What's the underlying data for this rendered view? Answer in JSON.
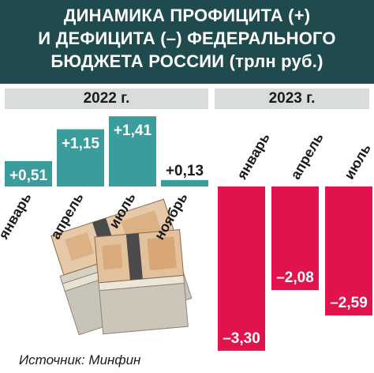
{
  "title": {
    "line1": "ДИНАМИКА ПРОФИЦИТА (+)",
    "line2": "И ДЕФИЦИТА (–) ФЕДЕРАЛЬНОГО",
    "line3": "БЮДЖЕТА РОССИИ (трлн руб.)"
  },
  "source": "Источник: Минфин",
  "colors": {
    "header_bg": "#1f4b4f",
    "surplus": "#3b9c9c",
    "deficit": "#e0134d",
    "year_band": "#d9dcdc"
  },
  "chart_data": {
    "type": "bar",
    "title": "ДИНАМИКА ПРОФИЦИТА (+) И ДЕФИЦИТА (–) ФЕДЕРАЛЬНОГО БЮДЖЕТА РОССИИ (трлн руб.)",
    "groups": [
      {
        "year": "2022 г.",
        "categories": [
          "январь",
          "апрель",
          "июль",
          "ноябрь"
        ],
        "values": [
          0.51,
          1.15,
          1.41,
          0.13
        ],
        "labels": [
          "+0,51",
          "+1,15",
          "+1,41",
          "+0,13"
        ]
      },
      {
        "year": "2023 г.",
        "categories": [
          "январь",
          "апрель",
          "июль"
        ],
        "values": [
          -3.3,
          -2.08,
          -2.59
        ],
        "labels": [
          "–3,30",
          "–2,08",
          "–2,59"
        ]
      }
    ]
  }
}
